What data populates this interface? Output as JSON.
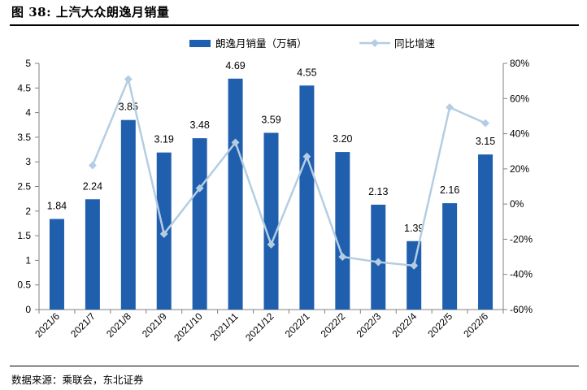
{
  "figure": {
    "title": "图 38: 上汽大众朗逸月销量",
    "source": "数据来源：乘联会，东北证券"
  },
  "chart_data": {
    "type": "bar",
    "categories": [
      "2021/6",
      "2021/7",
      "2021/8",
      "2021/9",
      "2021/10",
      "2021/11",
      "2021/12",
      "2022/1",
      "2022/2",
      "2022/3",
      "2022/4",
      "2022/5",
      "2022/6"
    ],
    "series": [
      {
        "name": "朗逸月销量（万辆）",
        "type": "bar",
        "axis": "left",
        "values": [
          1.84,
          2.24,
          3.85,
          3.19,
          3.48,
          4.69,
          3.59,
          4.55,
          3.2,
          2.13,
          1.39,
          2.16,
          3.15
        ],
        "labels": [
          "1.84",
          "2.24",
          "3.85",
          "3.19",
          "3.48",
          "4.69",
          "3.59",
          "4.55",
          "3.20",
          "2.13",
          "1.39",
          "2.16",
          "3.15"
        ],
        "color": "#1f5fae"
      },
      {
        "name": "同比增速",
        "type": "line",
        "axis": "right",
        "values": [
          null,
          22,
          71,
          -17,
          9,
          35,
          -23,
          27,
          -30,
          -33,
          -35,
          55,
          46
        ],
        "color": "#b4cde3"
      }
    ],
    "y_left": {
      "min": 0,
      "max": 5,
      "ticks": [
        "0",
        "0.5",
        "1",
        "1.5",
        "2",
        "2.5",
        "3",
        "3.5",
        "4",
        "4.5",
        "5"
      ]
    },
    "y_right": {
      "min": -60,
      "max": 80,
      "ticks": [
        "-60%",
        "-40%",
        "-20%",
        "0%",
        "20%",
        "40%",
        "60%",
        "80%"
      ]
    },
    "legend": {
      "placement": "top"
    },
    "grid": false
  }
}
